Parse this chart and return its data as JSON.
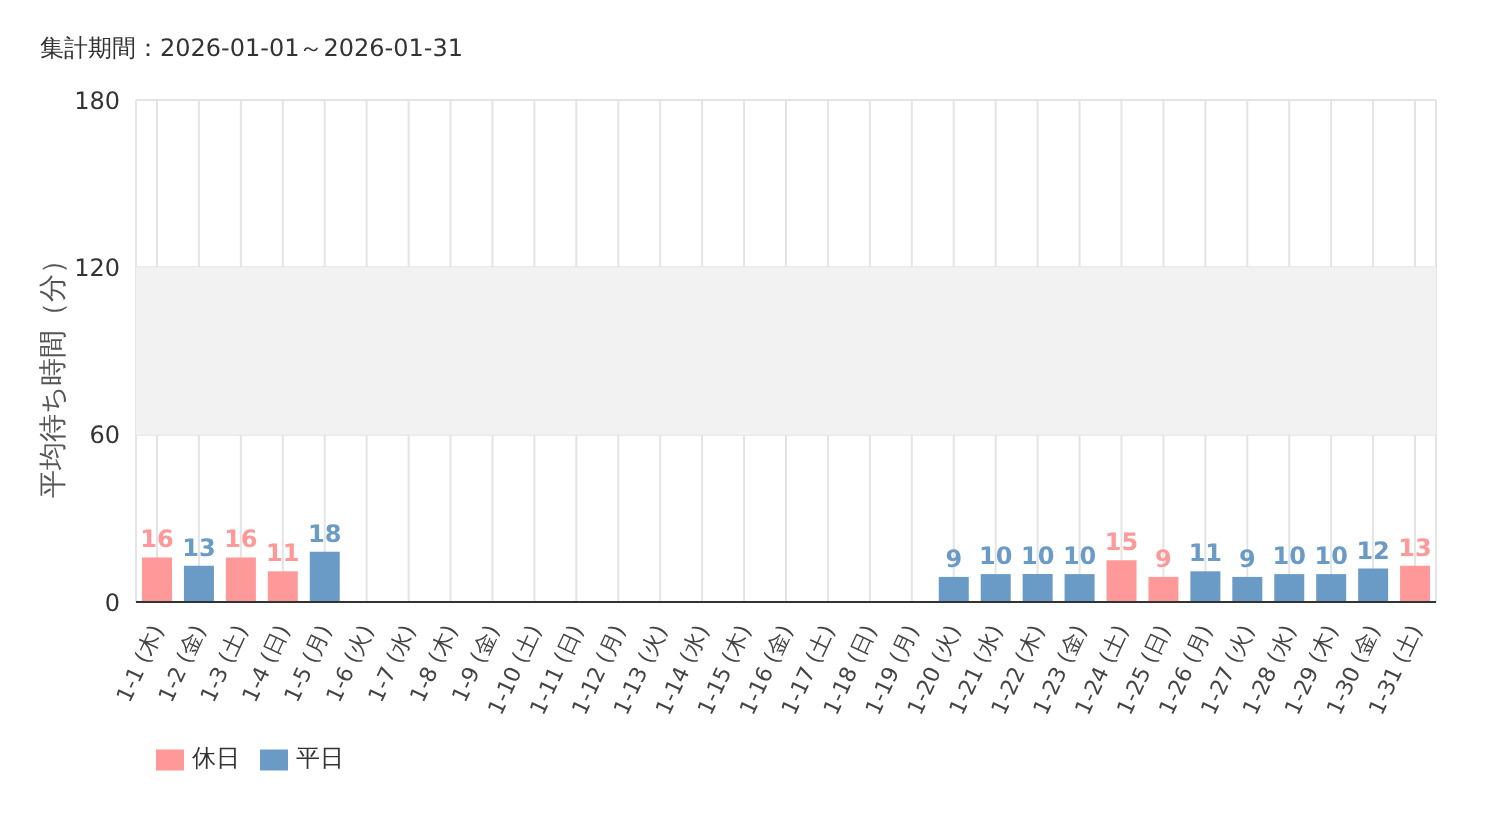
{
  "chart_data": {
    "type": "bar",
    "title": "集計期間：2026-01-01～2026-01-31",
    "ylabel": "平均待ち時間（分）",
    "categories": [
      "1-1 (木)",
      "1-2 (金)",
      "1-3 (土)",
      "1-4 (日)",
      "1-5 (月)",
      "1-6 (火)",
      "1-7 (水)",
      "1-8 (木)",
      "1-9 (金)",
      "1-10 (土)",
      "1-11 (日)",
      "1-12 (月)",
      "1-13 (火)",
      "1-14 (水)",
      "1-15 (木)",
      "1-16 (金)",
      "1-17 (土)",
      "1-18 (日)",
      "1-19 (月)",
      "1-20 (火)",
      "1-21 (水)",
      "1-22 (木)",
      "1-23 (金)",
      "1-24 (土)",
      "1-25 (日)",
      "1-26 (月)",
      "1-27 (火)",
      "1-28 (水)",
      "1-29 (木)",
      "1-30 (金)",
      "1-31 (土)"
    ],
    "series": [
      {
        "name": "平日",
        "color": "#6a9ac6",
        "values": [
          null,
          13,
          null,
          null,
          18,
          null,
          null,
          null,
          null,
          null,
          null,
          null,
          null,
          null,
          null,
          null,
          null,
          null,
          null,
          9,
          10,
          10,
          10,
          null,
          null,
          11,
          9,
          10,
          10,
          12,
          null
        ]
      },
      {
        "name": "休日",
        "color": "#ff9999",
        "values": [
          16,
          null,
          16,
          11,
          null,
          null,
          null,
          null,
          null,
          null,
          null,
          null,
          null,
          null,
          null,
          null,
          null,
          null,
          null,
          null,
          null,
          null,
          null,
          15,
          9,
          null,
          null,
          null,
          null,
          null,
          13
        ]
      }
    ],
    "stacked": true,
    "ylim": [
      0,
      180
    ],
    "yticks": [
      0,
      60,
      120,
      180
    ],
    "grid": true,
    "legend": "bottom left",
    "data_labels": true,
    "bands": [
      {
        "axis": "y",
        "from": 60,
        "to": 120,
        "color": "#f2f2f2"
      }
    ]
  }
}
